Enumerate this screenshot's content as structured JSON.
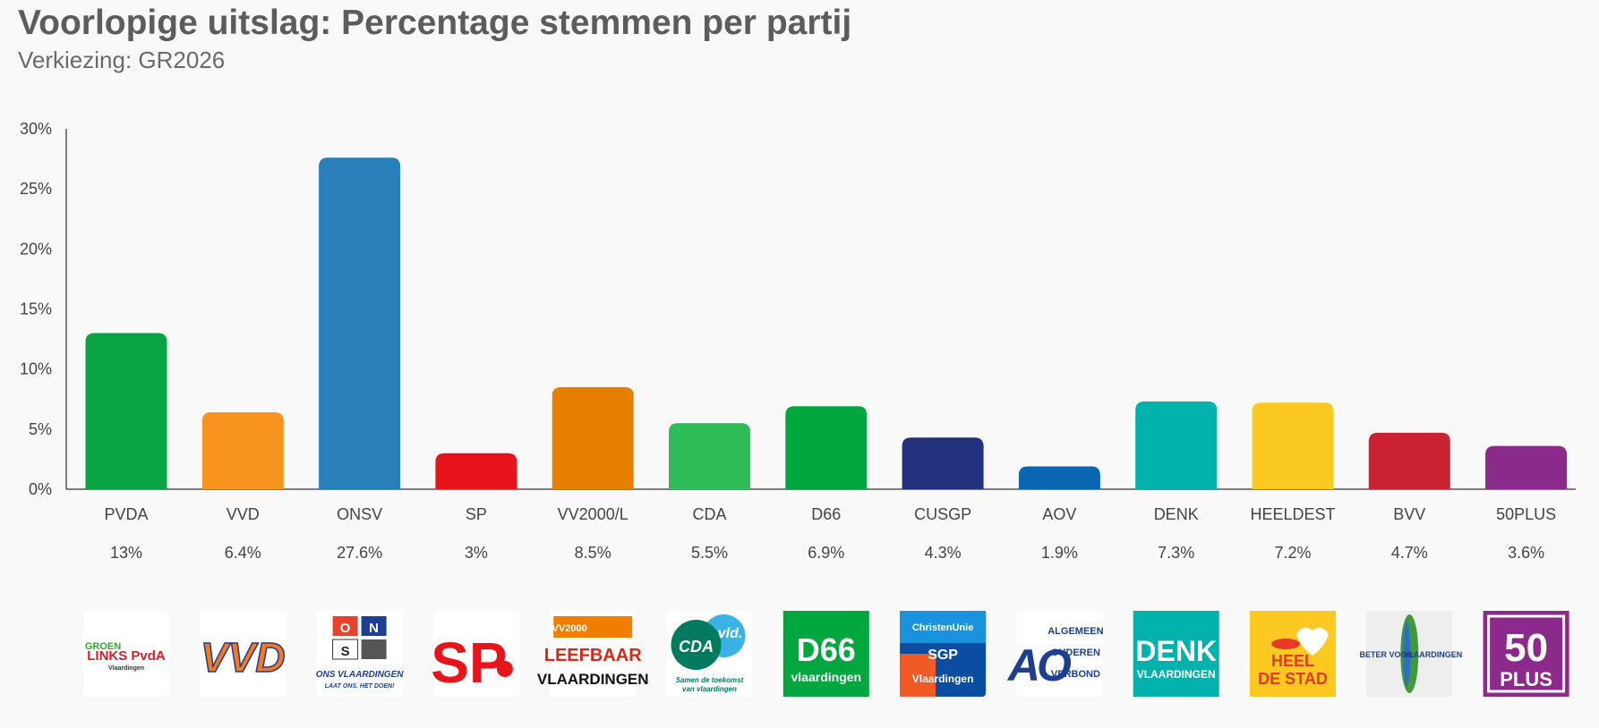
{
  "title": "Voorlopige uitslag: Percentage stemmen per partij",
  "subtitle": "Verkiezing: GR2026",
  "chart_data": {
    "type": "bar",
    "categories": [
      "PVDA",
      "VVD",
      "ONSV",
      "SP",
      "VV2000/L",
      "CDA",
      "D66",
      "CUSGP",
      "AOV",
      "DENK",
      "HEELDEST",
      "BVV",
      "50PLUS"
    ],
    "values": [
      13,
      6.4,
      27.6,
      3,
      8.5,
      5.5,
      6.9,
      4.3,
      1.9,
      7.3,
      7.2,
      4.7,
      3.6
    ],
    "value_labels": [
      "13%",
      "6.4%",
      "27.6%",
      "3%",
      "8.5%",
      "5.5%",
      "6.9%",
      "4.3%",
      "1.9%",
      "7.3%",
      "7.2%",
      "4.7%",
      "3.6%"
    ],
    "colors": [
      "#0aa344",
      "#f7941d",
      "#2980b9",
      "#e8141b",
      "#e67e00",
      "#2ebd59",
      "#00a63e",
      "#23307b",
      "#0a66b0",
      "#00b2ab",
      "#fbc91f",
      "#cb2233",
      "#8b2a8b"
    ],
    "yticks": [
      "0%",
      "5%",
      "10%",
      "15%",
      "20%",
      "25%",
      "30%"
    ],
    "ylim": [
      0,
      30
    ],
    "grid": false,
    "xlabel": "",
    "ylabel": ""
  },
  "logos": [
    {
      "icon": "groenlinks-pvda-logo",
      "lines": [
        "GROEN",
        "LINKS PvdA",
        "Vlaardingen"
      ]
    },
    {
      "icon": "vvd-logo",
      "lines": [
        "VVD"
      ]
    },
    {
      "icon": "ons-vlaardingen-logo",
      "lines": [
        "O",
        "N",
        "S",
        "ONS VLAARDINGEN",
        "LAAT ONS. HET DOEN!"
      ]
    },
    {
      "icon": "sp-logo",
      "lines": [
        "SP"
      ]
    },
    {
      "icon": "leefbaar-vlaardingen-logo",
      "lines": [
        "VV2000",
        "LEEFBAAR",
        "VLAARDINGEN"
      ]
    },
    {
      "icon": "cda-vld-logo",
      "lines": [
        "CDA",
        "vld.",
        "Samen de toekomst",
        "van vlaardingen"
      ]
    },
    {
      "icon": "d66-logo",
      "lines": [
        "D66",
        "vlaardingen"
      ]
    },
    {
      "icon": "christenunie-sgp-logo",
      "lines": [
        "ChristenUnie",
        "SGP",
        "Vlaardingen"
      ]
    },
    {
      "icon": "aov-logo",
      "lines": [
        "AO",
        "ALGEMEEN",
        "OUDEREN",
        "VERBOND"
      ]
    },
    {
      "icon": "denk-logo",
      "lines": [
        "DENK",
        "VLAARDINGEN"
      ]
    },
    {
      "icon": "heel-de-stad-logo",
      "lines": [
        "HEEL",
        "DE STAD"
      ]
    },
    {
      "icon": "beter-voor-vlaardingen-logo",
      "lines": [
        "BETER VOOR",
        "VLAARDINGEN"
      ]
    },
    {
      "icon": "50plus-logo",
      "lines": [
        "50",
        "PLUS"
      ]
    }
  ]
}
